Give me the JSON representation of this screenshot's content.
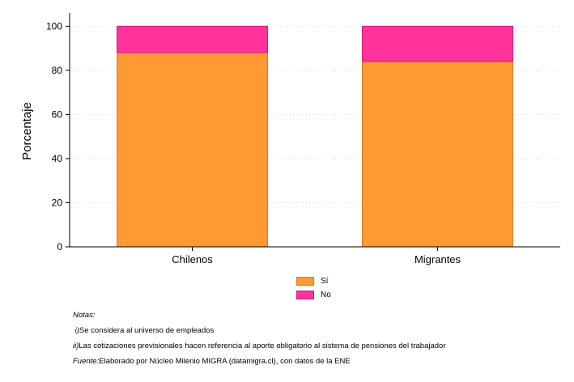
{
  "chart_data": {
    "type": "bar",
    "stacked": true,
    "categories": [
      "Chilenos",
      "Migrantes"
    ],
    "series": [
      {
        "name": "Sí",
        "values": [
          88,
          84
        ],
        "color": "#FF9933"
      },
      {
        "name": "No",
        "values": [
          12,
          16
        ],
        "color": "#FF3399"
      }
    ],
    "ylabel": "Porcentaje",
    "xlabel": "",
    "ylim": [
      0,
      106
    ],
    "yticks": [
      0,
      20,
      40,
      60,
      80,
      100
    ],
    "grid": true,
    "legend_position": "bottom"
  },
  "legend": [
    {
      "label": "Sí",
      "color": "#FF9933",
      "border": "#e07a1f"
    },
    {
      "label": "No",
      "color": "#FF3399",
      "border": "#d11f7a"
    }
  ],
  "notes": {
    "title": "Notas:",
    "note1_prefix": "i)",
    "note1_text": " Se considera al universo de empleados",
    "note2_prefix": "ii)",
    "note2_text": " Las cotizaciones previsionales hacen referencia al aporte obligatorio al sistema de pensiones del trabajador",
    "source_prefix": "Fuente:",
    "source_text": " Elaborado por Núcleo Milenio MIGRA (datamigra.cl), con datos de la ENE"
  }
}
